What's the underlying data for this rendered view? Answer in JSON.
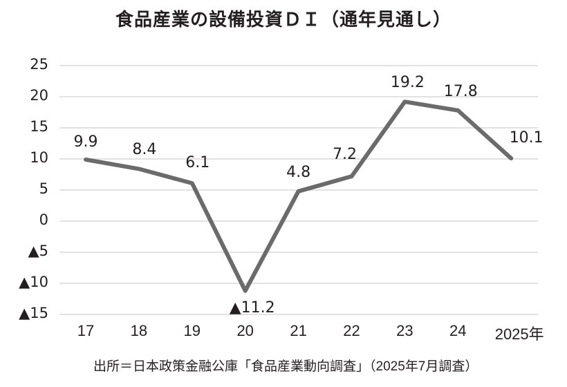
{
  "title": "食品産業の設備投資ＤＩ（通年見通し）",
  "source": "出所＝日本政策金融公庫「食品産業動向調査」（2025年7月調査）",
  "colors": {
    "line": "#6b6b6b",
    "grid": "#e2e2e2",
    "text": "#231f20"
  },
  "y_ticks": [
    {
      "label": "25",
      "value": 25
    },
    {
      "label": "20",
      "value": 20
    },
    {
      "label": "15",
      "value": 15
    },
    {
      "label": "10",
      "value": 10
    },
    {
      "label": "5",
      "value": 5
    },
    {
      "label": "0",
      "value": 0
    },
    {
      "label": "▲5",
      "value": -5
    },
    {
      "label": "▲10",
      "value": -10
    },
    {
      "label": "▲15",
      "value": -15
    }
  ],
  "x_ticks": [
    "17",
    "18",
    "19",
    "20",
    "21",
    "22",
    "23",
    "24",
    "2025年"
  ],
  "data_labels": [
    "9.9",
    "8.4",
    "6.1",
    "▲11.2",
    "4.8",
    "7.2",
    "19.2",
    "17.8",
    "10.1"
  ],
  "chart_data": {
    "type": "line",
    "title": "食品産業の設備投資ＤＩ（通年見通し）",
    "xlabel": "年",
    "ylabel": "",
    "categories": [
      "2017",
      "2018",
      "2019",
      "2020",
      "2021",
      "2022",
      "2023",
      "2024",
      "2025"
    ],
    "series": [
      {
        "name": "設備投資DI（通年見通し）",
        "values": [
          9.9,
          8.4,
          6.1,
          -11.2,
          4.8,
          7.2,
          19.2,
          17.8,
          10.1
        ]
      }
    ],
    "ylim": [
      -15,
      25
    ],
    "yticks": [
      25,
      20,
      15,
      10,
      5,
      0,
      -5,
      -10,
      -15
    ],
    "negative_marker": "▲",
    "grid": true,
    "legend": "none",
    "source": "出所＝日本政策金融公庫「食品産業動向調査」（2025年7月調査）"
  }
}
